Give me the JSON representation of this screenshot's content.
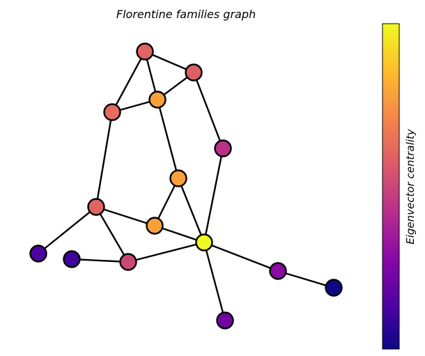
{
  "title": "Florentine families graph",
  "colorbar": {
    "label": "Eigenvector centrality",
    "colormap": "plasma",
    "stops": [
      "#0d0887",
      "#5302a3",
      "#8b0aa5",
      "#b83289",
      "#db5c68",
      "#f48849",
      "#febd2a",
      "#f0f921"
    ]
  },
  "graph": {
    "nodes": [
      {
        "id": "n1",
        "value": 0.6
      },
      {
        "id": "n2",
        "value": 0.58
      },
      {
        "id": "n3",
        "value": 0.78
      },
      {
        "id": "n4",
        "value": 0.62
      },
      {
        "id": "n5",
        "value": 0.43
      },
      {
        "id": "n6",
        "value": 0.78
      },
      {
        "id": "n7",
        "value": 0.6
      },
      {
        "id": "n8",
        "value": 0.78
      },
      {
        "id": "n9",
        "value": 1.0
      },
      {
        "id": "n10",
        "value": 0.13
      },
      {
        "id": "n11",
        "value": 0.1
      },
      {
        "id": "n12",
        "value": 0.5
      },
      {
        "id": "n13",
        "value": 0.28
      },
      {
        "id": "n14",
        "value": 0.0
      },
      {
        "id": "n15",
        "value": 0.22
      }
    ],
    "edges": [
      [
        "n1",
        "n2"
      ],
      [
        "n1",
        "n3"
      ],
      [
        "n1",
        "n4"
      ],
      [
        "n2",
        "n3"
      ],
      [
        "n4",
        "n3"
      ],
      [
        "n2",
        "n5"
      ],
      [
        "n3",
        "n6"
      ],
      [
        "n4",
        "n7"
      ],
      [
        "n5",
        "n9"
      ],
      [
        "n6",
        "n8"
      ],
      [
        "n6",
        "n9"
      ],
      [
        "n7",
        "n8"
      ],
      [
        "n7",
        "n10"
      ],
      [
        "n7",
        "n12"
      ],
      [
        "n8",
        "n9"
      ],
      [
        "n11",
        "n12"
      ],
      [
        "n12",
        "n9"
      ],
      [
        "n9",
        "n13"
      ],
      [
        "n13",
        "n14"
      ],
      [
        "n9",
        "n15"
      ]
    ]
  }
}
